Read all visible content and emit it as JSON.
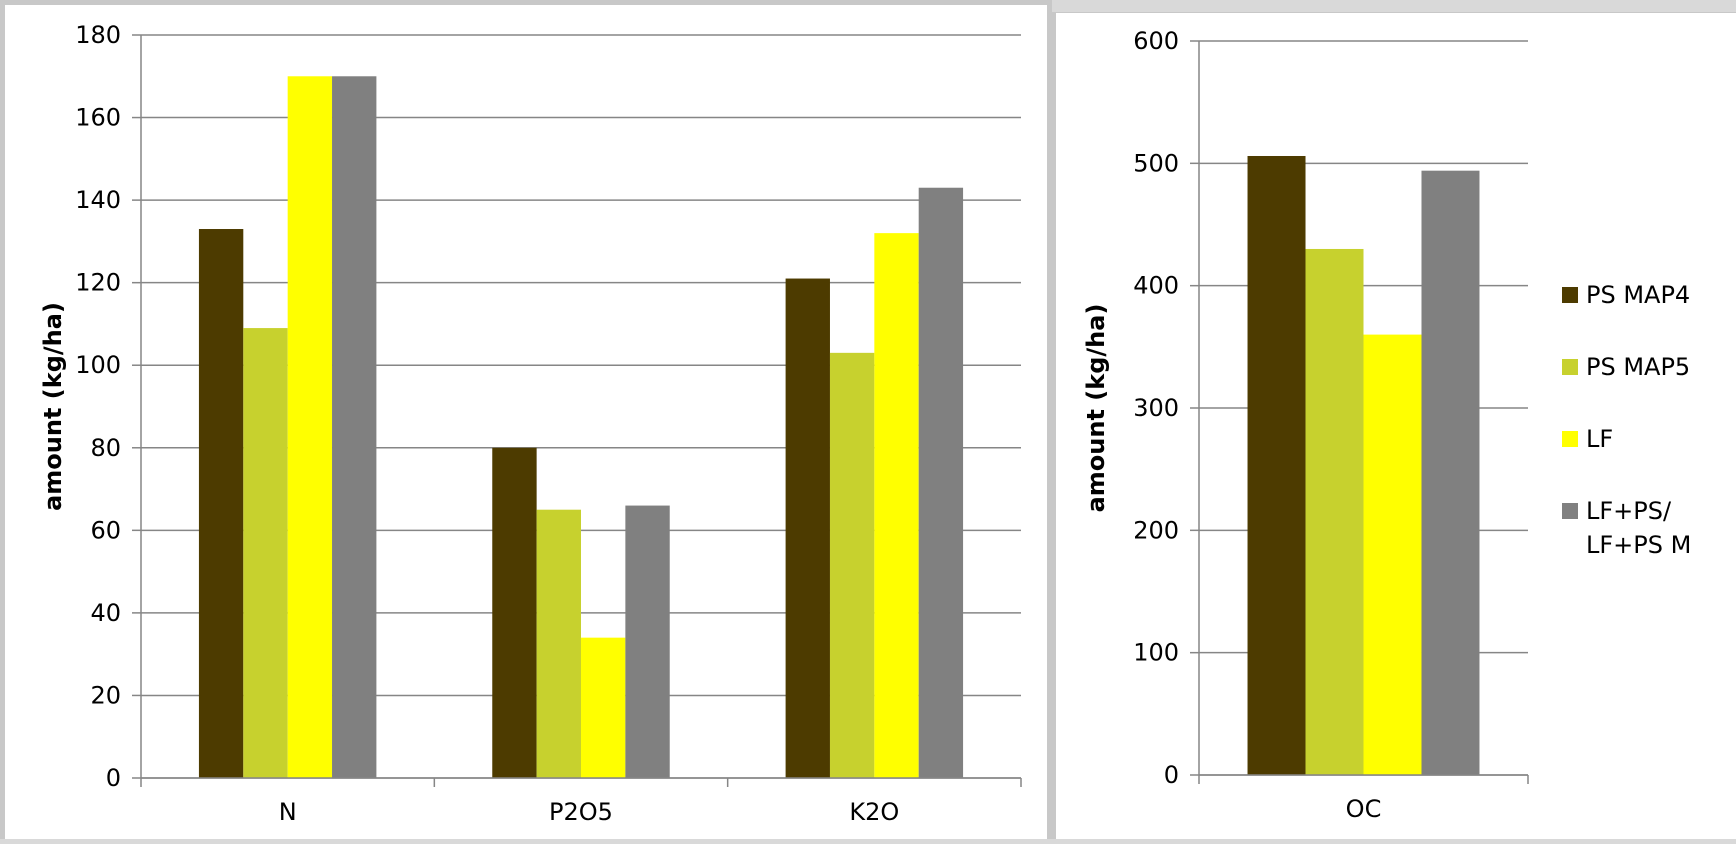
{
  "chart_data": [
    {
      "type": "bar",
      "categories": [
        "N",
        "P2O5",
        "K2O"
      ],
      "series": [
        {
          "name": "PS MAP4",
          "color": "#4d3b00",
          "values": [
            133,
            80,
            121
          ]
        },
        {
          "name": "PS MAP5",
          "color": "#c7d12e",
          "values": [
            109,
            65,
            103
          ]
        },
        {
          "name": "LF",
          "color": "#ffff00",
          "values": [
            170,
            34,
            132
          ]
        },
        {
          "name": "LF+PS/ LF+PS M",
          "color": "#808080",
          "values": [
            170,
            66,
            143
          ]
        }
      ],
      "ylabel": "amount (kg/ha)",
      "ylim": [
        0,
        180
      ],
      "yticks": [
        "0",
        "20",
        "40",
        "60",
        "80",
        "100",
        "120",
        "140",
        "160",
        "180"
      ],
      "grid": true
    },
    {
      "type": "bar",
      "categories": [
        "OC"
      ],
      "series": [
        {
          "name": "PS MAP4",
          "color": "#4d3b00",
          "values": [
            506
          ]
        },
        {
          "name": "PS MAP5",
          "color": "#c7d12e",
          "values": [
            430
          ]
        },
        {
          "name": "LF",
          "color": "#ffff00",
          "values": [
            360
          ]
        },
        {
          "name": "LF+PS/ LF+PS M",
          "color": "#808080",
          "values": [
            494
          ]
        }
      ],
      "ylabel": "amount (kg/ha)",
      "ylim": [
        0,
        600
      ],
      "yticks": [
        "0",
        "100",
        "200",
        "300",
        "400",
        "500",
        "600"
      ],
      "grid": true,
      "legend": {
        "position": "right",
        "entries": [
          {
            "lines": [
              "PS MAP4"
            ],
            "color": "#4d3b00"
          },
          {
            "lines": [
              "PS MAP5"
            ],
            "color": "#c7d12e"
          },
          {
            "lines": [
              "LF"
            ],
            "color": "#ffff00"
          },
          {
            "lines": [
              "LF+PS/",
              "LF+PS M"
            ],
            "color": "#808080"
          }
        ]
      }
    }
  ]
}
